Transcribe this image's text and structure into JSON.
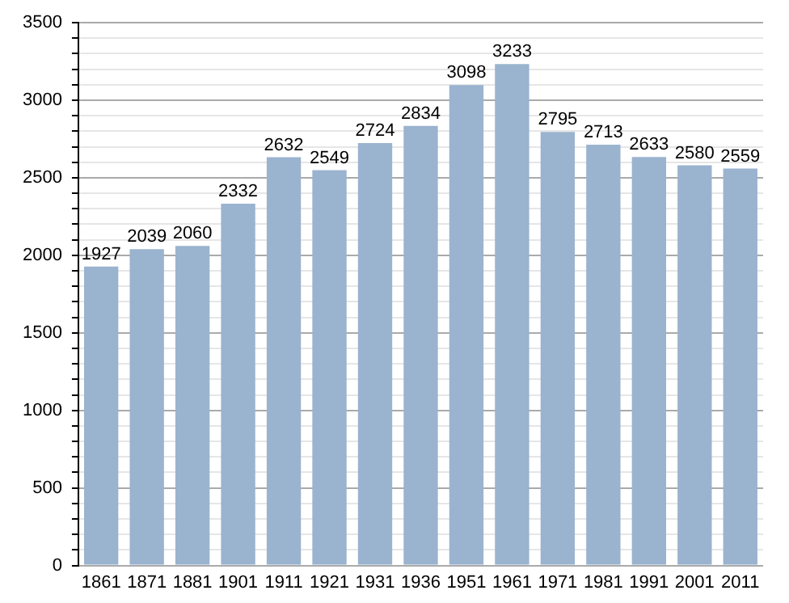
{
  "chart_data": {
    "type": "bar",
    "categories": [
      "1861",
      "1871",
      "1881",
      "1901",
      "1911",
      "1921",
      "1931",
      "1936",
      "1951",
      "1961",
      "1971",
      "1981",
      "1991",
      "2001",
      "2011"
    ],
    "values": [
      1927,
      2039,
      2060,
      2332,
      2632,
      2549,
      2724,
      2834,
      3098,
      3233,
      2795,
      2713,
      2633,
      2580,
      2559
    ],
    "color": "#9ab3cf",
    "ylim": [
      0,
      3500
    ],
    "yticks": [
      0,
      {
        "value": 100,
        "label": null
      },
      {
        "value": 200,
        "label": null
      },
      {
        "value": 300,
        "label": null
      },
      {
        "value": 400,
        "label": null
      },
      500,
      {
        "value": 600,
        "label": null
      },
      {
        "value": 700,
        "label": null
      },
      {
        "value": 800,
        "label": null
      },
      {
        "value": 900,
        "label": null
      },
      1000,
      {
        "value": 1100,
        "label": null
      },
      {
        "value": 1200,
        "label": null
      },
      {
        "value": 1300,
        "label": null
      },
      {
        "value": 1400,
        "label": null
      },
      1500,
      {
        "value": 1600,
        "label": null
      },
      {
        "value": 1700,
        "label": null
      },
      {
        "value": 1800,
        "label": null
      },
      {
        "value": 1900,
        "label": null
      },
      2000,
      {
        "value": 2100,
        "label": null
      },
      {
        "value": 2200,
        "label": null
      },
      {
        "value": 2300,
        "label": null
      },
      {
        "value": 2400,
        "label": null
      },
      2500,
      {
        "value": 2600,
        "label": null
      },
      {
        "value": 2700,
        "label": null
      },
      {
        "value": 2800,
        "label": null
      },
      {
        "value": 2900,
        "label": null
      },
      3000,
      {
        "value": 3100,
        "label": null
      },
      {
        "value": 3200,
        "label": null
      },
      {
        "value": 3300,
        "label": null
      },
      {
        "value": 3400,
        "label": null
      },
      3500
    ],
    "grid": "y",
    "data_labels": true,
    "legend": false
  }
}
